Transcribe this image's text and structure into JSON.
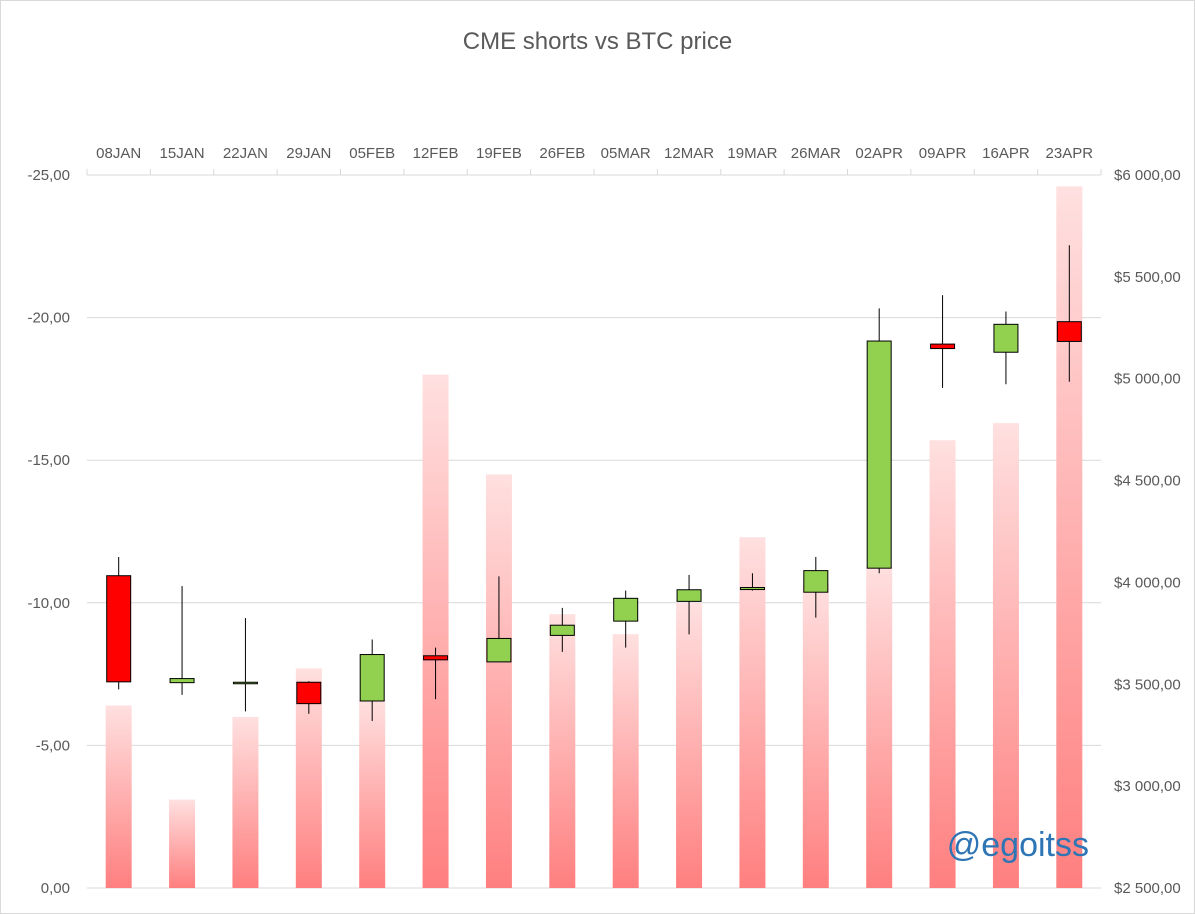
{
  "chart_data": {
    "type": "bar+candlestick",
    "title": "CME shorts vs BTC price",
    "categories": [
      "08JAN",
      "15JAN",
      "22JAN",
      "29JAN",
      "05FEB",
      "12FEB",
      "19FEB",
      "26FEB",
      "05MAR",
      "12MAR",
      "19MAR",
      "26MAR",
      "02APR",
      "09APR",
      "16APR",
      "23APR"
    ],
    "left_axis": {
      "ticks": [
        "-25,00",
        "-20,00",
        "-15,00",
        "-10,00",
        "-5,00",
        "0,00"
      ],
      "tick_values": [
        -25,
        -20,
        -15,
        -10,
        -5,
        0
      ],
      "range": [
        0,
        -25
      ]
    },
    "right_axis": {
      "ticks": [
        "$6 000,00",
        "$5 500,00",
        "$5 000,00",
        "$4 500,00",
        "$4 000,00",
        "$3 500,00",
        "$3 000,00",
        "$2 500,00"
      ],
      "tick_values": [
        6000,
        5500,
        5000,
        4500,
        4000,
        3500,
        3000,
        2500
      ],
      "range": [
        2500,
        6000
      ]
    },
    "series": [
      {
        "kind": "bar",
        "axis": "left",
        "color": "#ff7f7f",
        "values": [
          -6.4,
          -3.1,
          -6.0,
          -7.7,
          -6.6,
          -18.0,
          -14.5,
          -9.6,
          -8.9,
          -10.0,
          -12.3,
          -10.7,
          -11.3,
          -15.7,
          -16.3,
          -24.6
        ]
      },
      {
        "kind": "candlestick",
        "axis": "right",
        "up_color": "#92d050",
        "down_color": "#ff0000",
        "open": [
          4033,
          3508,
          3510,
          3510,
          3418,
          3640,
          3610,
          3740,
          3810,
          3907,
          3965,
          3952,
          4070,
          5170,
          5130,
          5280
        ],
        "close": [
          3512,
          3528,
          3510,
          3405,
          3646,
          3620,
          3725,
          3790,
          3922,
          3964,
          3975,
          4058,
          5185,
          5148,
          5267,
          5183
        ],
        "high": [
          4125,
          3982,
          3825,
          3515,
          3720,
          3680,
          4030,
          3875,
          3960,
          4037,
          4045,
          4125,
          5345,
          5410,
          5330,
          5655
        ],
        "low": [
          3475,
          3448,
          3367,
          3355,
          3320,
          3427,
          3610,
          3659,
          3680,
          3745,
          3960,
          3827,
          4045,
          4955,
          4973,
          4985
        ]
      }
    ],
    "grid": true,
    "category_axis_position": "top"
  },
  "watermark": "@egoitss"
}
